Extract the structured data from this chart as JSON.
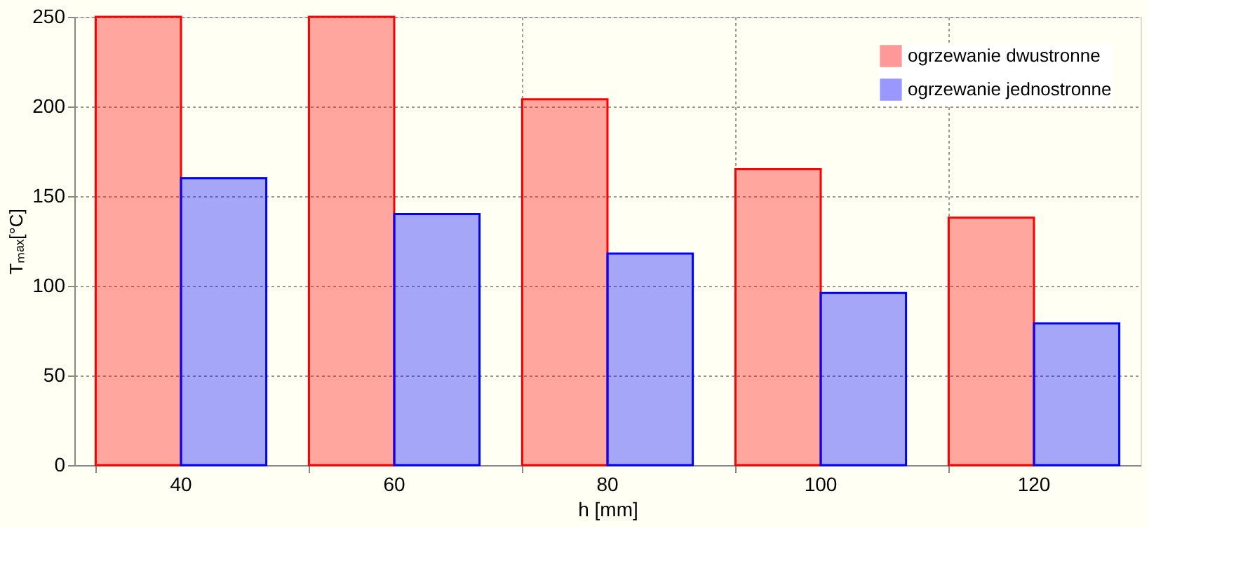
{
  "chart_data": {
    "type": "bar",
    "xlabel": "h [mm]",
    "ylabel": "Tₘₐₓ[°C]",
    "categories": [
      "40",
      "60",
      "80",
      "100",
      "120"
    ],
    "series": [
      {
        "name": "ogrzewanie dwustronne",
        "color": "#ff0000",
        "values": [
          250,
          250,
          204,
          165,
          138
        ]
      },
      {
        "name": "ogrzewanie jednostronne",
        "color": "#0000ff",
        "values": [
          160,
          140,
          118,
          96,
          79
        ]
      }
    ],
    "ylim": [
      0,
      250
    ],
    "yticks": [
      0,
      50,
      100,
      150,
      200,
      250
    ],
    "grid": true,
    "legend": "top right"
  }
}
